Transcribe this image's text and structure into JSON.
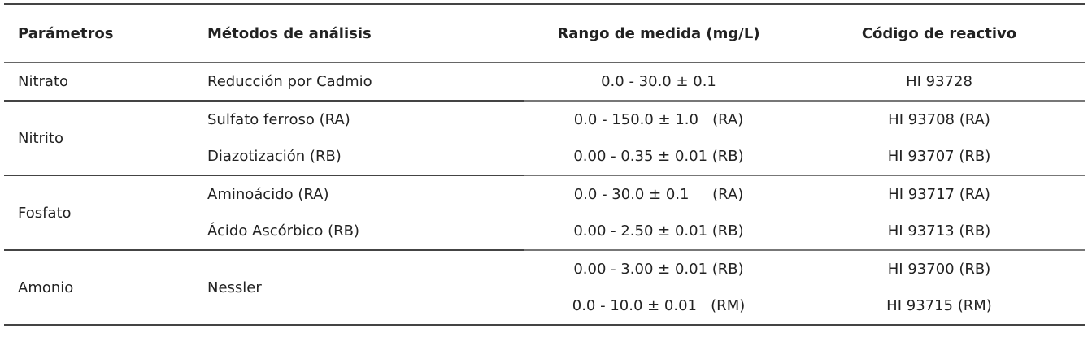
{
  "table": {
    "header": [
      "Parámetros",
      "Métodos de análisis",
      "Rango de medida (mg/L)",
      "Código de reactivo"
    ],
    "groups": [
      {
        "parameter": "Nitrato",
        "methods": [
          {
            "method": "Reducción por Cadmio",
            "ranges": [
              "0.0 - 30.0 ± 0.1"
            ],
            "codes": [
              "HI 93728"
            ]
          }
        ]
      },
      {
        "parameter": "Nitrito",
        "methods": [
          {
            "method": "Sulfato ferroso (RA)",
            "ranges": [
              "0.0 - 150.0 ± 1.0   (RA)"
            ],
            "codes": [
              "HI 93708 (RA)"
            ]
          },
          {
            "method": "Diazotización (RB)",
            "ranges": [
              "0.00 - 0.35 ± 0.01 (RB)"
            ],
            "codes": [
              "HI 93707 (RB)"
            ]
          }
        ]
      },
      {
        "parameter": "Fosfato",
        "methods": [
          {
            "method": "Aminoácido (RA)",
            "ranges": [
              "0.0 - 30.0 ± 0.1     (RA)"
            ],
            "codes": [
              "HI 93717 (RA)"
            ]
          },
          {
            "method": "Ácido Ascórbico (RB)",
            "ranges": [
              "0.00 - 2.50 ± 0.01 (RB)"
            ],
            "codes": [
              "HI 93713 (RB)"
            ]
          }
        ]
      },
      {
        "parameter": "Amonio",
        "methods": [
          {
            "method": "Nessler",
            "ranges": [
              "0.00 - 3.00 ± 0.01 (RB)",
              "0.0 - 10.0 ± 0.01   (RM)"
            ],
            "codes": [
              "HI 93700 (RB)",
              "HI 93715 (RM)"
            ]
          }
        ]
      }
    ]
  }
}
